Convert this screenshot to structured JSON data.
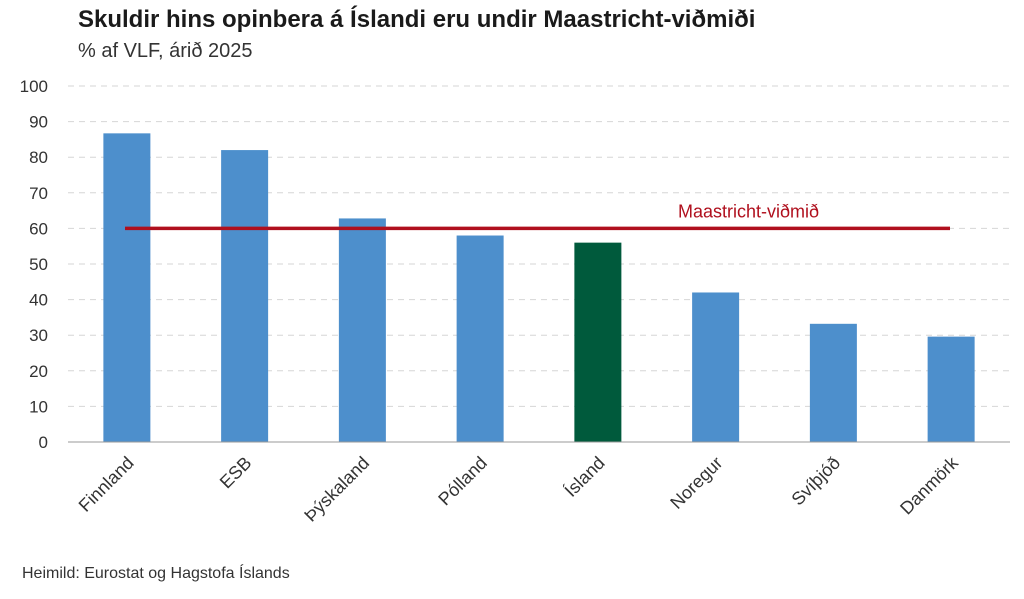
{
  "chart_data": {
    "type": "bar",
    "title": "Skuldir hins opinbera á Íslandi eru undir Maastricht-viðmiði",
    "subtitle": "% af VLF, árið 2025",
    "source": "Heimild: Eurostat og Hagstofa Íslands",
    "categories": [
      "Finnland",
      "ESB",
      "Þýskaland",
      "Pólland",
      "Ísland",
      "Noregur",
      "Svíþjóð",
      "Danmörk"
    ],
    "values": [
      86.7,
      82.0,
      62.8,
      58.0,
      56.0,
      42.0,
      33.2,
      29.6
    ],
    "highlight_category": "Ísland",
    "ylim": [
      0,
      100
    ],
    "yticks": [
      0,
      10,
      20,
      30,
      40,
      50,
      60,
      70,
      80,
      90,
      100
    ],
    "grid": true,
    "reference_line": {
      "label": "Maastricht-viðmið",
      "value": 60
    },
    "colors": {
      "bar": "#4d8fcc",
      "highlight": "#005a3c",
      "reference": "#b0101e",
      "grid": "#d6d6d6",
      "axis": "#999999"
    }
  }
}
